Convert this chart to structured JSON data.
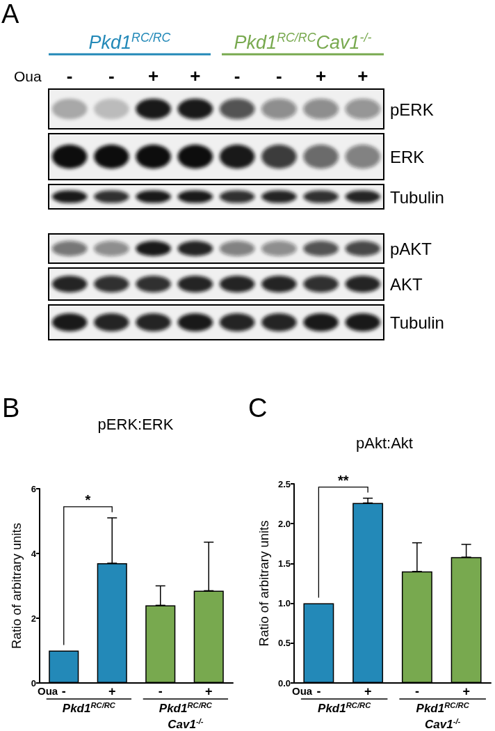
{
  "chart_data": [
    {
      "type": "other",
      "annotations": [
        "A",
        "Pkd1$^{RC/RC}$",
        "Pkd1$^{RC/RC}$Cav1$^{-/-}$"
      ],
      "xlabel": "Oua",
      "categories": [
        "-",
        "-",
        "+",
        "+",
        "-",
        "-",
        "+",
        "+"
      ],
      "y_categories": [
        "pERK",
        "ERK",
        "Tubulin",
        "pAKT",
        "AKT",
        "Tubulin"
      ]
    },
    {
      "type": "bar",
      "title": "pERK:ERK",
      "ylabel": "Ratio of arbitrary units",
      "xlabel": "Oua",
      "annotations": [
        "B",
        "*"
      ],
      "categories": [
        "-",
        "+",
        "-",
        "+"
      ],
      "series": [
        {
          "name": "Pkd1$^{RC/RC}$",
          "color": "#2389b8",
          "values": [
            1.0,
            3.7,
            null,
            null
          ],
          "errors": [
            null,
            [
              3.7,
              5.1
            ],
            null,
            null
          ]
        },
        {
          "name": "Pkd1$^{RC/RC}$\nCav1$^{-/-}$",
          "color": "#78a94f",
          "values": [
            null,
            null,
            2.4,
            2.85
          ],
          "errors": [
            null,
            null,
            [
              2.4,
              3.0
            ],
            [
              2.85,
              4.35
            ]
          ]
        }
      ],
      "ylim": [
        0,
        6
      ],
      "yticks": [
        0,
        2,
        4,
        6
      ]
    },
    {
      "type": "bar",
      "title": "pAkt:Akt",
      "ylabel": "Ratio of arbitrary units",
      "xlabel": "Oua",
      "annotations": [
        "C",
        "**"
      ],
      "categories": [
        "-",
        "+",
        "-",
        "+"
      ],
      "series": [
        {
          "name": "Pkd1$^{RC/RC}$",
          "color": "#2389b8",
          "values": [
            1.0,
            2.26,
            null,
            null
          ],
          "errors": [
            null,
            [
              2.26,
              2.32
            ],
            null,
            null
          ]
        },
        {
          "name": "Pkd1$^{RC/RC}$\nCav1$^{-/-}$",
          "color": "#78a94f",
          "values": [
            null,
            null,
            1.4,
            1.58
          ],
          "errors": [
            null,
            null,
            [
              1.4,
              1.76
            ],
            [
              1.58,
              1.74
            ]
          ]
        }
      ],
      "ylim": [
        0,
        2.5
      ],
      "yticks": [
        {
          "value": 0,
          "label": "0.0"
        },
        0.5,
        {
          "value": 1,
          "label": "1.0"
        },
        1.5,
        {
          "value": 2,
          "label": "2.0"
        },
        2.5
      ]
    }
  ]
}
